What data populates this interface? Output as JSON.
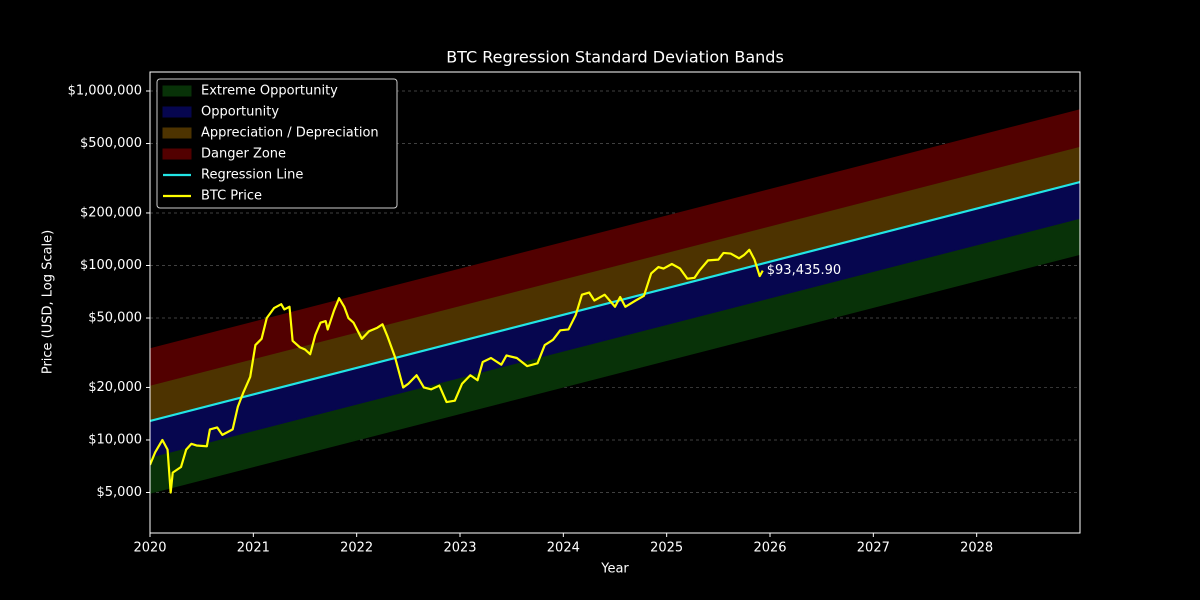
{
  "chart_data": {
    "type": "line",
    "title": "BTC Regression Standard Deviation Bands",
    "x_label": "Year",
    "y_label": "Price (USD, Log Scale)",
    "xlim": [
      2020,
      2029
    ],
    "xticks": [
      2020,
      2021,
      2022,
      2023,
      2024,
      2025,
      2026,
      2027,
      2028
    ],
    "ylim": [
      2930,
      1285000
    ],
    "log_y": true,
    "yticks": [
      {
        "value": 5000,
        "label": "$5,000"
      },
      {
        "value": 10000,
        "label": "$10,000"
      },
      {
        "value": 20000,
        "label": "$20,000"
      },
      {
        "value": 50000,
        "label": "$50,000"
      },
      {
        "value": 100000,
        "label": "$100,000"
      },
      {
        "value": 200000,
        "label": "$200,000"
      },
      {
        "value": 500000,
        "label": "$500,000"
      },
      {
        "value": 1000000,
        "label": "$1,000,000"
      }
    ],
    "grid": true,
    "legend": "upper left",
    "bands": [
      {
        "name": "Extreme Opportunity",
        "color": "#083208",
        "x": [
          2020,
          2029
        ],
        "lower": [
          4970,
          116300
        ],
        "upper": [
          7990,
          187100
        ]
      },
      {
        "name": "Opportunity",
        "color": "#06064f",
        "x": [
          2020,
          2029
        ],
        "lower": [
          7990,
          187100
        ],
        "upper": [
          12850,
          300800
        ]
      },
      {
        "name": "Appreciation / Depreciation",
        "color": "#4d3300",
        "x": [
          2020,
          2029
        ],
        "lower": [
          12850,
          300800
        ],
        "upper": [
          20660,
          483700
        ]
      },
      {
        "name": "Danger Zone",
        "color": "#520000",
        "x": [
          2020,
          2029
        ],
        "lower": [
          20660,
          483700
        ],
        "upper": [
          33230,
          777800
        ]
      }
    ],
    "series": [
      {
        "name": "Regression Line",
        "color": "#22e5e5",
        "x": [
          2020,
          2029
        ],
        "values": [
          12850,
          300800
        ]
      },
      {
        "name": "BTC Price",
        "color": "#ffff00",
        "x": [
          2020.0,
          2020.05,
          2020.12,
          2020.17,
          2020.2,
          2020.22,
          2020.3,
          2020.35,
          2020.4,
          2020.45,
          2020.55,
          2020.58,
          2020.65,
          2020.7,
          2020.8,
          2020.85,
          2020.9,
          2020.97,
          2021.02,
          2021.08,
          2021.13,
          2021.2,
          2021.27,
          2021.3,
          2021.35,
          2021.38,
          2021.45,
          2021.5,
          2021.55,
          2021.6,
          2021.65,
          2021.7,
          2021.72,
          2021.78,
          2021.83,
          2021.88,
          2021.92,
          2021.97,
          2022.05,
          2022.12,
          2022.2,
          2022.25,
          2022.3,
          2022.37,
          2022.45,
          2022.5,
          2022.58,
          2022.65,
          2022.72,
          2022.8,
          2022.87,
          2022.95,
          2023.02,
          2023.1,
          2023.17,
          2023.22,
          2023.3,
          2023.4,
          2023.45,
          2023.55,
          2023.65,
          2023.75,
          2023.82,
          2023.9,
          2023.97,
          2024.05,
          2024.12,
          2024.18,
          2024.25,
          2024.3,
          2024.4,
          2024.5,
          2024.55,
          2024.6,
          2024.7,
          2024.78,
          2024.85,
          2024.92,
          2024.97,
          2025.05,
          2025.13,
          2025.2,
          2025.27,
          2025.32,
          2025.4,
          2025.5,
          2025.55,
          2025.62,
          2025.7,
          2025.75,
          2025.8,
          2025.85,
          2025.88,
          2025.9,
          2025.93
        ],
        "values": [
          7200,
          8500,
          10000,
          8800,
          5000,
          6500,
          7000,
          8800,
          9500,
          9300,
          9200,
          11500,
          11800,
          10700,
          11500,
          15500,
          18500,
          23000,
          35000,
          38000,
          50000,
          57000,
          60000,
          56000,
          58000,
          37000,
          34000,
          33000,
          31000,
          40000,
          47000,
          48000,
          43000,
          55000,
          65000,
          58000,
          50000,
          47000,
          38000,
          42000,
          44000,
          46000,
          39000,
          30000,
          20000,
          21000,
          23500,
          20000,
          19500,
          20500,
          16500,
          16800,
          21000,
          23500,
          22000,
          28000,
          29500,
          27000,
          30500,
          29500,
          26500,
          27500,
          35000,
          37500,
          42500,
          43000,
          52000,
          68000,
          70000,
          63000,
          68000,
          58000,
          66000,
          58000,
          63000,
          67000,
          90000,
          98000,
          96000,
          102000,
          96000,
          84000,
          85000,
          94000,
          107000,
          108000,
          118000,
          117000,
          110000,
          115000,
          123000,
          108000,
          95000,
          87000,
          93435.9
        ]
      }
    ],
    "annotation": {
      "text": "$93,435.90",
      "color": "#e6c200"
    }
  }
}
